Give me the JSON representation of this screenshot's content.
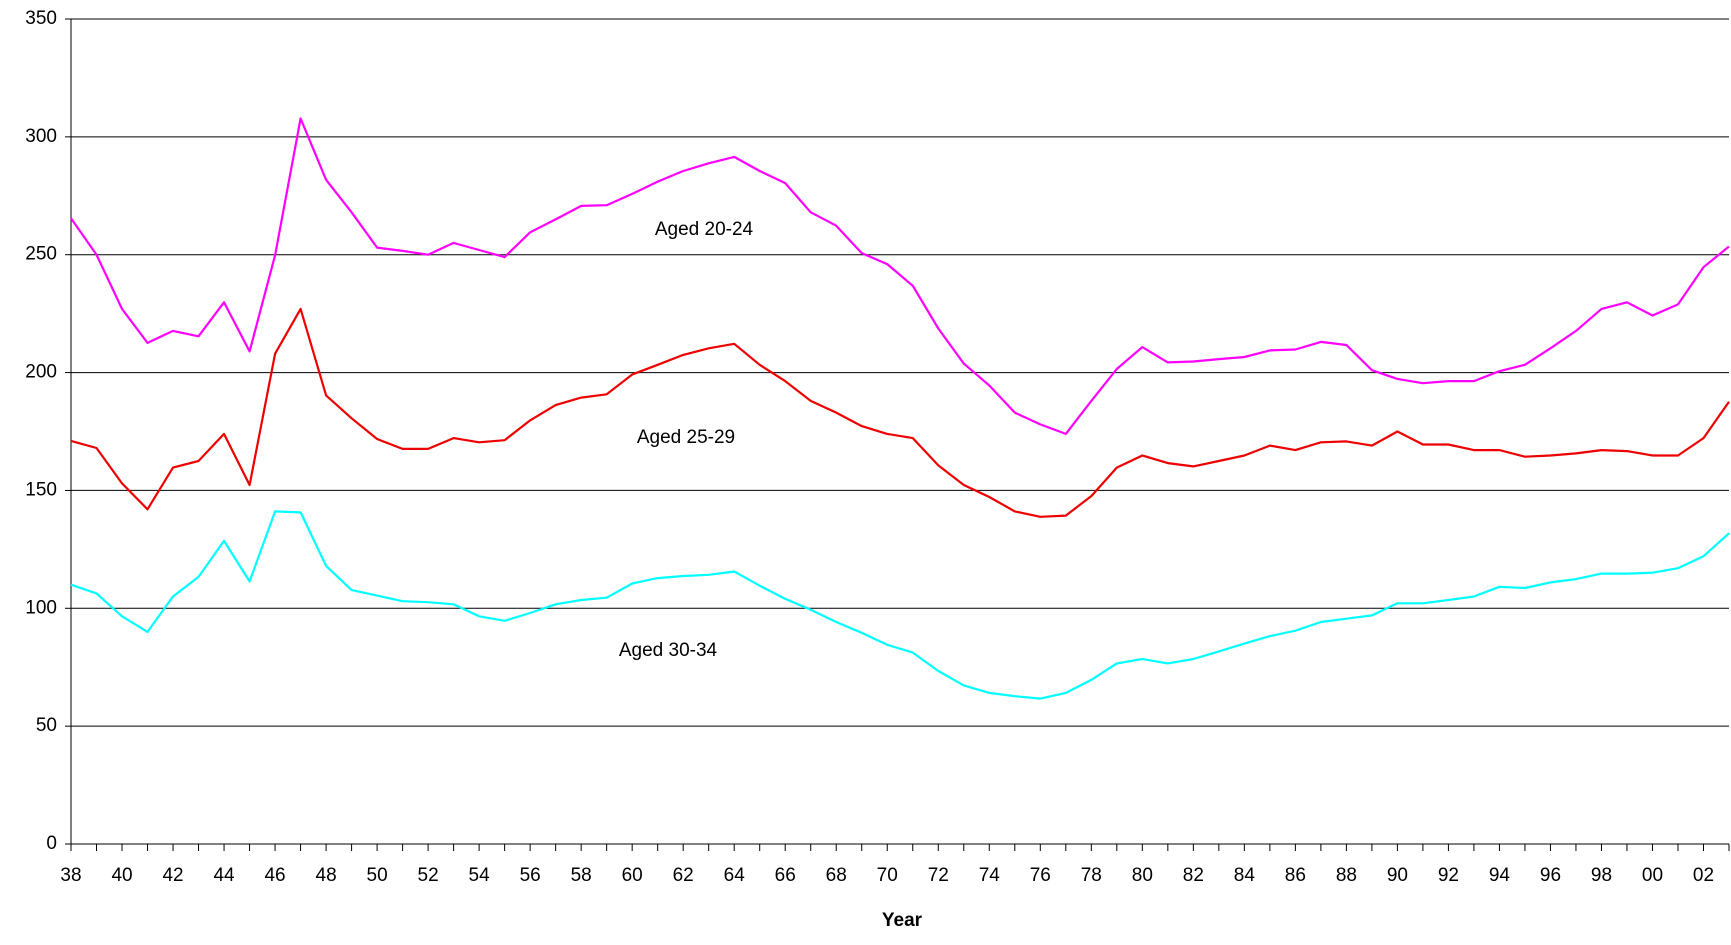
{
  "chart_data": {
    "type": "line",
    "x_label": "Year",
    "categories": [
      "38",
      null,
      "40",
      null,
      "42",
      null,
      "44",
      null,
      "46",
      null,
      "48",
      null,
      "50",
      null,
      "52",
      null,
      "54",
      null,
      "56",
      null,
      "58",
      null,
      "60",
      null,
      "62",
      null,
      "64",
      null,
      "66",
      null,
      "68",
      null,
      "70",
      null,
      "72",
      null,
      "74",
      null,
      "76",
      null,
      "78",
      null,
      "80",
      null,
      "82",
      null,
      "84",
      null,
      "86",
      null,
      "88",
      null,
      "90",
      null,
      "92",
      null,
      "94",
      null,
      "96",
      null,
      "98",
      null,
      "00",
      null,
      "02",
      null
    ],
    "series": [
      {
        "name": "Aged 20-24",
        "color": "#ff00ff",
        "values": [
          265.5,
          250,
          227,
          212.6,
          217.7,
          215.4,
          229.8,
          209,
          249.8,
          307.8,
          281.8,
          268,
          253,
          251.6,
          250,
          255,
          252,
          249,
          259.5,
          265,
          270.7,
          271,
          275.8,
          281,
          285.5,
          288.8,
          291.5,
          285.5,
          280.4,
          268,
          262.3,
          250.7,
          246,
          236.8,
          218.7,
          203.8,
          194.5,
          183,
          178,
          174,
          188,
          201.5,
          210.8,
          204.3,
          204.7,
          205.7,
          206.6,
          209.4,
          209.8,
          213,
          211.7,
          201,
          197.3,
          195.5,
          196.4,
          196.4,
          200.6,
          203.3,
          210.3,
          217.7,
          227,
          229.8,
          224.2,
          228.9,
          244.7,
          253.5
        ]
      },
      {
        "name": "Aged 25-29",
        "color": "#ee0000",
        "values": [
          171,
          168,
          153,
          142,
          159.7,
          162.5,
          174,
          152.3,
          208,
          227,
          190.3,
          180.6,
          171.8,
          167.6,
          167.6,
          172.2,
          170.4,
          171.3,
          179.7,
          186.2,
          189.4,
          190.8,
          199.2,
          203.3,
          207.5,
          210.3,
          212.2,
          203.3,
          196.4,
          188,
          183,
          177.3,
          174,
          172.2,
          160.6,
          152.3,
          147.2,
          141.1,
          138.8,
          139.3,
          147.6,
          159.7,
          164.8,
          161.6,
          160.2,
          162.5,
          164.8,
          169,
          167.1,
          170.4,
          170.8,
          169,
          175,
          169.5,
          169.5,
          167.1,
          167.1,
          164.3,
          164.8,
          165.7,
          167.1,
          166.7,
          164.8,
          164.8,
          172.2,
          187.6
        ]
      },
      {
        "name": "Aged 30-34",
        "color": "#00ffff",
        "values": [
          110,
          106.3,
          96.6,
          90,
          105,
          113.3,
          128.6,
          111.4,
          141.1,
          140.7,
          118,
          107.7,
          105.4,
          103,
          102.6,
          101.7,
          96.6,
          94.7,
          98,
          101.7,
          103.5,
          104.5,
          110.5,
          112.8,
          113.7,
          114.2,
          115.6,
          109.6,
          104,
          99.4,
          94.2,
          89.6,
          84.5,
          81.2,
          73.4,
          67.3,
          64.1,
          62.7,
          61.7,
          64.1,
          69.6,
          76.6,
          78.5,
          76.6,
          78.5,
          81.7,
          85,
          88.2,
          90.5,
          94.2,
          95.6,
          97,
          102.1,
          102.1,
          103.5,
          105,
          109.1,
          108.6,
          111,
          112.4,
          114.7,
          114.7,
          115.1,
          117,
          122.1,
          131.8
        ]
      }
    ],
    "ylim": [
      0,
      350
    ],
    "yticks": [
      0,
      50,
      100,
      150,
      200,
      250,
      300,
      350
    ],
    "grid": true
  }
}
